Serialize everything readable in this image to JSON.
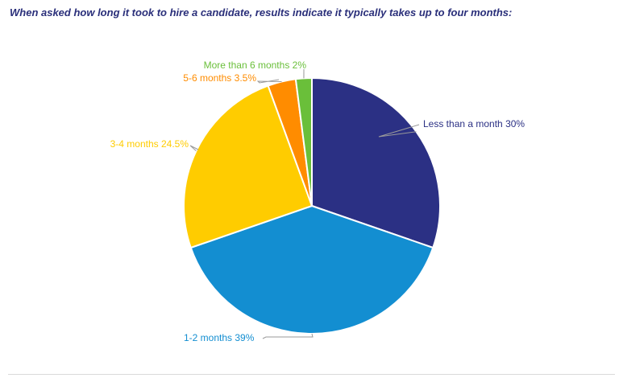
{
  "title": "When asked how long it took to hire a candidate, results indicate it typically takes up to four months:",
  "chart_data": {
    "type": "pie",
    "start_angle_deg": 0,
    "direction": "clockwise",
    "slices": [
      {
        "name": "Less than a month",
        "value": 30,
        "label": "Less than a month 30%",
        "color": "#2b3084"
      },
      {
        "name": "1-2 months",
        "value": 39,
        "label": "1-2 months 39%",
        "color": "#138ed1"
      },
      {
        "name": "3-4 months",
        "value": 24.5,
        "label": "3-4 months 24.5%",
        "color": "#ffcc00"
      },
      {
        "name": "5-6 months",
        "value": 3.5,
        "label": "5-6 months 3.5%",
        "color": "#ff8c00"
      },
      {
        "name": "More than 6 months",
        "value": 2,
        "label": "More than 6 months 2%",
        "color": "#6abf3a"
      }
    ]
  },
  "colors": {
    "title": "#2a2f7a",
    "leader": "#9a9a9a",
    "slice_border": "#ffffff"
  }
}
